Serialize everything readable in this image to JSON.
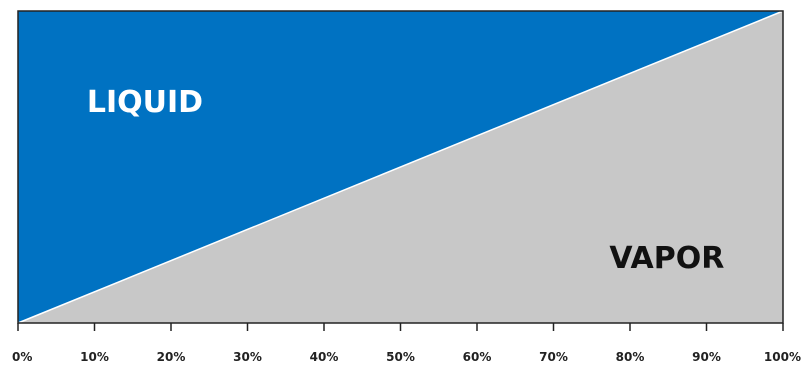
{
  "chart_data": {
    "type": "area",
    "title": "",
    "xlabel": "",
    "ylabel": "",
    "x": [
      0,
      100
    ],
    "xlim": [
      0,
      100
    ],
    "ylim": [
      0,
      100
    ],
    "x_ticks": [
      0,
      10,
      20,
      30,
      40,
      50,
      60,
      70,
      80,
      90,
      100
    ],
    "x_tick_labels": [
      "0%",
      "10%",
      "20%",
      "30%",
      "40%",
      "50%",
      "60%",
      "70%",
      "80%",
      "90%",
      "100%"
    ],
    "grid": false,
    "series": [
      {
        "name": "LIQUID",
        "values": [
          0,
          100
        ],
        "region": "above-line"
      },
      {
        "name": "VAPOR",
        "values": [
          0,
          100
        ],
        "region": "below-line"
      }
    ],
    "colors": {
      "liquid": "#0072C2",
      "vapor": "#C8C8C8",
      "divider": "#FFFFFF",
      "border": "#222222"
    },
    "labels": {
      "liquid_text": "LIQUID",
      "vapor_text": "VAPOR",
      "liquid_color": "#FFFFFF",
      "vapor_color": "#111111"
    }
  }
}
